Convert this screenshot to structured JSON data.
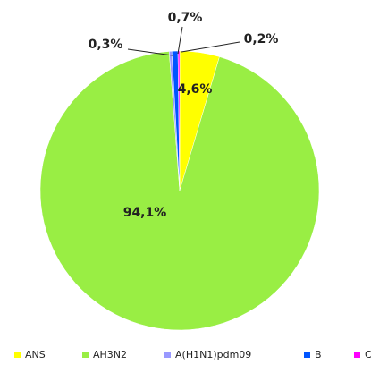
{
  "chart_data": {
    "type": "pie",
    "categories": [
      "ANS",
      "AH3N2",
      "A(H1N1)pdm09",
      "B",
      "C"
    ],
    "values": [
      4.6,
      94.1,
      0.3,
      0.7,
      0.2
    ],
    "value_labels": [
      "4,6%",
      "94,1%",
      "0,3%",
      "0,7%",
      "0,2%"
    ],
    "colors": [
      "#ffff00",
      "#99ee44",
      "#9999ff",
      "#0055ff",
      "#ff00ff"
    ],
    "legend": "bottom"
  }
}
